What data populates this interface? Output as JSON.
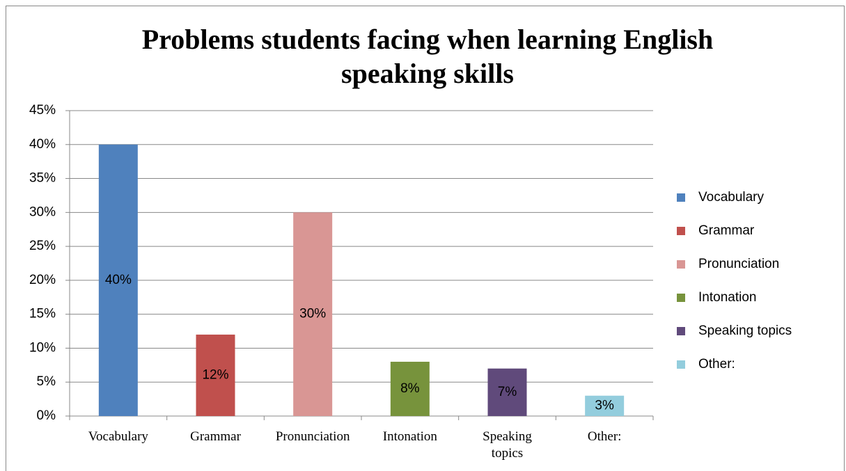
{
  "chart_data": {
    "type": "bar",
    "title": "Problems students facing when learning English speaking skills",
    "categories": [
      "Vocabulary",
      "Grammar",
      "Pronunciation",
      "Intonation",
      "Speaking topics",
      "Other:"
    ],
    "values": [
      40,
      12,
      30,
      8,
      7,
      3
    ],
    "value_labels": [
      "40%",
      "12%",
      "30%",
      "8%",
      "7%",
      "3%"
    ],
    "colors": [
      "#4f81bd",
      "#c0504d",
      "#d99694",
      "#77933c",
      "#604a7b",
      "#93cddd"
    ],
    "ylim": [
      0,
      45
    ],
    "yticks": [
      {
        "value": 0,
        "label": "0%"
      },
      {
        "value": 5,
        "label": "5%"
      },
      {
        "value": 10,
        "label": "10%"
      },
      {
        "value": 15,
        "label": "15%"
      },
      {
        "value": 20,
        "label": "20%"
      },
      {
        "value": 25,
        "label": "25%"
      },
      {
        "value": 30,
        "label": "30%"
      },
      {
        "value": 35,
        "label": "35%"
      },
      {
        "value": 40,
        "label": "40%"
      },
      {
        "value": 45,
        "label": "45%"
      }
    ],
    "grid": true,
    "legend": "right"
  }
}
